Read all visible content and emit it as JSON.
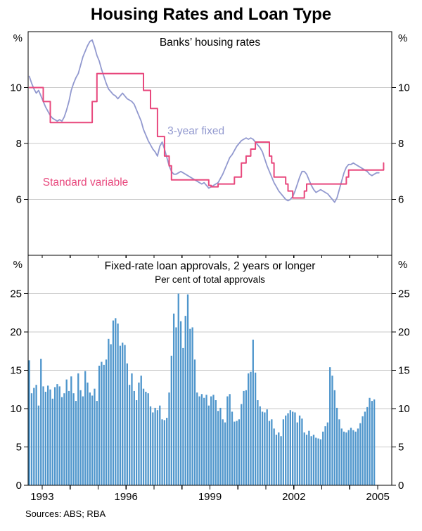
{
  "title": "Housing Rates and Loan Type",
  "sources": "Sources: ABS; RBA",
  "colors": {
    "grid": "#c9c9c9",
    "axis": "#000000"
  },
  "x_axis": {
    "domain": [
      1992.5,
      2005.5
    ],
    "year_ticks": [
      1993,
      1994,
      1995,
      1996,
      1997,
      1998,
      1999,
      2000,
      2001,
      2002,
      2003,
      2004,
      2005
    ],
    "labels": [
      1993,
      1996,
      1999,
      2002,
      2005
    ]
  },
  "chart_data": [
    {
      "type": "line",
      "panel": "top",
      "title": "Banks’ housing rates",
      "unit": "%",
      "ylim": [
        4,
        12
      ],
      "yticks": [
        6,
        8,
        10
      ],
      "series": [
        {
          "name": "3-year fixed",
          "color": "#9299cf",
          "step": false,
          "start": "1992-07",
          "monthly_values": [
            10.4,
            10.15,
            9.95,
            9.8,
            9.9,
            9.7,
            9.5,
            9.3,
            9.15,
            9.0,
            8.9,
            8.85,
            8.8,
            8.85,
            8.8,
            8.95,
            9.2,
            9.5,
            9.9,
            10.15,
            10.35,
            10.5,
            10.8,
            11.1,
            11.3,
            11.5,
            11.65,
            11.7,
            11.45,
            11.15,
            10.95,
            10.65,
            10.4,
            10.15,
            9.95,
            9.85,
            9.75,
            9.7,
            9.6,
            9.7,
            9.8,
            9.7,
            9.6,
            9.55,
            9.5,
            9.4,
            9.2,
            9.0,
            8.8,
            8.5,
            8.3,
            8.1,
            7.95,
            7.8,
            7.7,
            7.55,
            7.9,
            8.05,
            7.8,
            7.5,
            7.2,
            7.0,
            6.9,
            6.9,
            6.95,
            7.0,
            6.95,
            6.9,
            6.85,
            6.8,
            6.75,
            6.7,
            6.65,
            6.6,
            6.55,
            6.6,
            6.5,
            6.4,
            6.45,
            6.5,
            6.55,
            6.6,
            6.75,
            6.9,
            7.1,
            7.3,
            7.5,
            7.6,
            7.75,
            7.9,
            8.0,
            8.1,
            8.15,
            8.2,
            8.15,
            8.2,
            8.15,
            8.05,
            7.95,
            7.85,
            7.7,
            7.45,
            7.2,
            7.0,
            6.8,
            6.6,
            6.45,
            6.3,
            6.2,
            6.1,
            6.0,
            5.95,
            6.0,
            6.1,
            6.3,
            6.55,
            6.8,
            7.0,
            7.0,
            6.9,
            6.7,
            6.5,
            6.35,
            6.25,
            6.3,
            6.35,
            6.3,
            6.25,
            6.2,
            6.1,
            6.0,
            5.9,
            6.05,
            6.35,
            6.65,
            6.95,
            7.15,
            7.25,
            7.25,
            7.3,
            7.25,
            7.2,
            7.15,
            7.1,
            7.05,
            7.0,
            6.9,
            6.85,
            6.9,
            6.95,
            6.95
          ]
        },
        {
          "name": "Standard variable",
          "color": "#e8487d",
          "step": true,
          "start": "1992-07",
          "monthly_values": [
            10,
            10,
            10,
            10,
            10,
            10,
            9.5,
            9.5,
            9.5,
            8.75,
            8.75,
            8.75,
            8.75,
            8.75,
            8.75,
            8.75,
            8.75,
            8.75,
            8.75,
            8.75,
            8.75,
            8.75,
            8.75,
            8.75,
            8.75,
            8.75,
            8.75,
            9.5,
            9.5,
            10.5,
            10.5,
            10.5,
            10.5,
            10.5,
            10.5,
            10.5,
            10.5,
            10.5,
            10.5,
            10.5,
            10.5,
            10.5,
            10.5,
            10.5,
            10.5,
            10.5,
            10.5,
            10.5,
            10.5,
            9.9,
            9.9,
            9.9,
            9.25,
            9.25,
            9.25,
            8.25,
            8.25,
            8.25,
            7.55,
            7.55,
            7.2,
            6.7,
            6.7,
            6.7,
            6.7,
            6.7,
            6.7,
            6.7,
            6.7,
            6.7,
            6.7,
            6.7,
            6.7,
            6.7,
            6.7,
            6.7,
            6.7,
            6.5,
            6.45,
            6.45,
            6.45,
            6.55,
            6.55,
            6.55,
            6.55,
            6.55,
            6.55,
            6.55,
            6.8,
            6.8,
            6.8,
            7.3,
            7.3,
            7.55,
            7.55,
            7.8,
            7.8,
            8.05,
            8.05,
            8.05,
            8.05,
            8.05,
            8.05,
            7.55,
            7.3,
            6.8,
            6.8,
            6.8,
            6.8,
            6.8,
            6.55,
            6.3,
            6.3,
            6.05,
            6.05,
            6.05,
            6.05,
            6.05,
            6.3,
            6.55,
            6.55,
            6.55,
            6.55,
            6.55,
            6.55,
            6.55,
            6.55,
            6.55,
            6.55,
            6.55,
            6.55,
            6.55,
            6.55,
            6.55,
            6.55,
            6.55,
            6.8,
            7.05,
            7.05,
            7.05,
            7.05,
            7.05,
            7.05,
            7.05,
            7.05,
            7.05,
            7.05,
            7.05,
            7.05,
            7.05,
            7.05,
            7.05,
            7.3
          ]
        }
      ],
      "labels": [
        {
          "text": "3-year fixed",
          "x": 1998.5,
          "y": 8.45,
          "color": "#9299cf"
        },
        {
          "text": "Standard variable",
          "x": 1994.55,
          "y": 6.62,
          "color": "#e8487d"
        }
      ]
    },
    {
      "type": "bar",
      "panel": "bottom",
      "title": "Fixed-rate loan approvals, 2 years or longer",
      "subtitle": "Per cent of total approvals",
      "unit": "%",
      "ylim": [
        0,
        30
      ],
      "yticks": [
        0,
        5,
        10,
        15,
        20,
        25
      ],
      "series": [
        {
          "name": "Fixed-rate share of total approvals",
          "color": "#4f96cc",
          "start": "1992-07",
          "monthly_values": [
            16.3,
            12.0,
            12.7,
            13.1,
            10.4,
            16.5,
            12.9,
            12.2,
            13.0,
            12.5,
            11.3,
            12.8,
            13.2,
            12.9,
            11.5,
            12.0,
            13.8,
            12.3,
            14.2,
            12.0,
            11.0,
            14.6,
            12.4,
            11.6,
            14.9,
            13.4,
            12.1,
            11.7,
            12.6,
            11.0,
            15.6,
            16.1,
            15.7,
            16.4,
            19.1,
            18.4,
            21.5,
            21.8,
            21.1,
            18.2,
            18.6,
            18.3,
            15.9,
            13.1,
            14.6,
            12.3,
            11.1,
            13.4,
            14.3,
            12.6,
            12.2,
            12.0,
            10.3,
            9.5,
            10.1,
            9.8,
            10.4,
            8.6,
            8.5,
            8.8,
            12.1,
            16.9,
            22.4,
            20.6,
            25.0,
            21.4,
            17.9,
            22.1,
            24.9,
            20.4,
            20.6,
            16.4,
            12.1,
            11.6,
            11.9,
            11.4,
            11.8,
            10.4,
            11.6,
            11.8,
            11.1,
            9.7,
            10.1,
            8.6,
            8.2,
            11.6,
            11.9,
            9.6,
            8.3,
            8.4,
            8.6,
            10.6,
            12.3,
            12.4,
            14.6,
            14.8,
            19.0,
            14.7,
            11.1,
            10.3,
            9.6,
            9.5,
            9.9,
            8.4,
            8.6,
            7.4,
            6.6,
            6.9,
            6.4,
            8.6,
            9.1,
            9.4,
            9.8,
            9.6,
            9.5,
            8.2,
            9.1,
            8.7,
            6.9,
            6.6,
            7.1,
            6.4,
            6.6,
            6.2,
            6.1,
            6.0,
            7.0,
            7.7,
            8.2,
            15.4,
            14.3,
            12.4,
            10.1,
            8.6,
            7.4,
            7.0,
            6.9,
            7.2,
            7.5,
            7.2,
            7.0,
            7.4,
            8.1,
            9.0,
            9.6,
            10.2,
            11.4,
            11.0,
            11.2
          ]
        }
      ]
    }
  ]
}
